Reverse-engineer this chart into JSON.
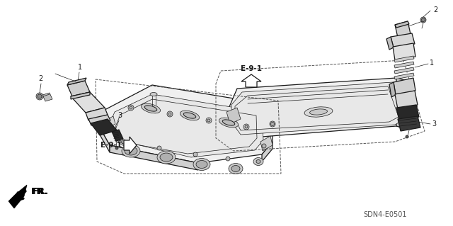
{
  "bg_color": "#ffffff",
  "line_color": "#1a1a1a",
  "label_color": "#111111",
  "part_number": "SDN4-E0501",
  "fr_label": "FR.",
  "e91_label": "E-9-1",
  "figsize": [
    6.4,
    3.19
  ],
  "dpi": 100,
  "lw_main": 0.9,
  "lw_thin": 0.5,
  "lw_dashed": 0.7
}
